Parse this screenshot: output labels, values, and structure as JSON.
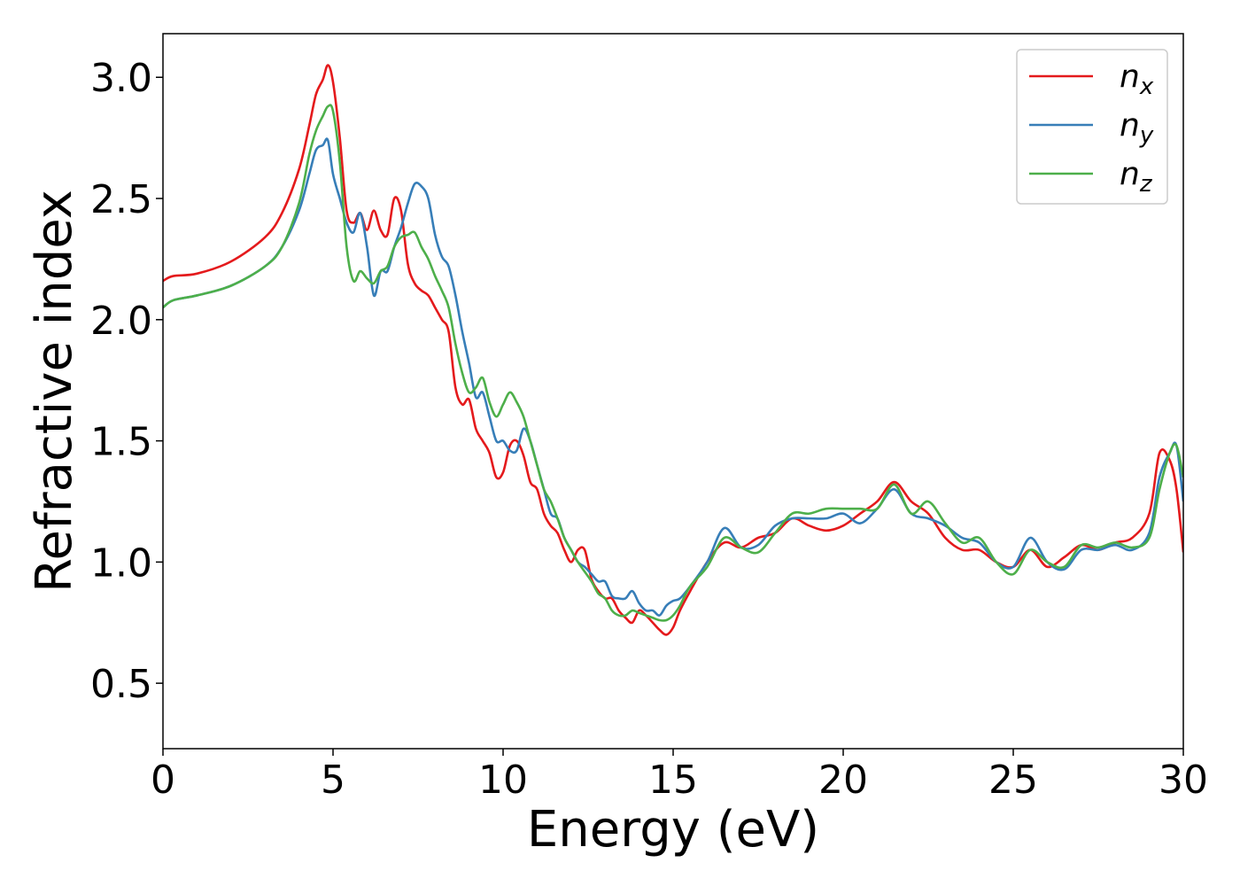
{
  "chart_data": {
    "type": "line",
    "title": "",
    "xlabel": "Energy (eV)",
    "ylabel": "Refractive index",
    "xlim": [
      0,
      30
    ],
    "ylim": [
      0.23,
      3.18
    ],
    "xticks": [
      0,
      5,
      10,
      15,
      20,
      25,
      30
    ],
    "xtick_labels": [
      "0",
      "5",
      "10",
      "15",
      "20",
      "25",
      "30"
    ],
    "yticks": [
      0.5,
      1.0,
      1.5,
      2.0,
      2.5,
      3.0
    ],
    "ytick_labels": [
      "0.5",
      "1.0",
      "1.5",
      "2.0",
      "2.5",
      "3.0"
    ],
    "grid": false,
    "legend_position": "top-right",
    "series": [
      {
        "name": "n",
        "subscript": "x",
        "color": "#e41a1c",
        "x": [
          0,
          0.3,
          1,
          2,
          3,
          3.5,
          4,
          4.3,
          4.5,
          4.7,
          4.85,
          5.0,
          5.2,
          5.4,
          5.6,
          5.8,
          6.0,
          6.2,
          6.4,
          6.6,
          6.8,
          7.0,
          7.2,
          7.4,
          7.6,
          7.8,
          8.0,
          8.2,
          8.4,
          8.6,
          8.8,
          9.0,
          9.2,
          9.4,
          9.6,
          9.8,
          10.0,
          10.2,
          10.4,
          10.6,
          10.8,
          11.0,
          11.2,
          11.4,
          11.6,
          11.8,
          12.0,
          12.2,
          12.4,
          12.6,
          12.8,
          13.0,
          13.2,
          13.4,
          13.6,
          13.8,
          14.0,
          14.2,
          14.4,
          14.6,
          14.8,
          15.0,
          15.2,
          15.5,
          16.0,
          16.5,
          17.0,
          17.5,
          18.0,
          18.5,
          19.0,
          19.5,
          20.0,
          20.5,
          21.0,
          21.5,
          22.0,
          22.5,
          23.0,
          23.5,
          24.0,
          24.5,
          25.0,
          25.5,
          26.0,
          26.5,
          27.0,
          27.5,
          28.0,
          28.5,
          29.0,
          29.3,
          29.6,
          29.8,
          30.0
        ],
        "y": [
          2.16,
          2.18,
          2.19,
          2.24,
          2.34,
          2.44,
          2.62,
          2.8,
          2.93,
          2.99,
          3.05,
          2.98,
          2.75,
          2.45,
          2.4,
          2.44,
          2.37,
          2.45,
          2.37,
          2.35,
          2.5,
          2.45,
          2.23,
          2.15,
          2.12,
          2.1,
          2.05,
          2.0,
          1.95,
          1.72,
          1.65,
          1.67,
          1.55,
          1.5,
          1.45,
          1.35,
          1.37,
          1.48,
          1.5,
          1.44,
          1.33,
          1.3,
          1.2,
          1.15,
          1.12,
          1.05,
          1.0,
          1.05,
          1.05,
          0.93,
          0.88,
          0.85,
          0.85,
          0.8,
          0.77,
          0.75,
          0.8,
          0.78,
          0.75,
          0.72,
          0.7,
          0.73,
          0.8,
          0.88,
          1.0,
          1.08,
          1.06,
          1.1,
          1.12,
          1.18,
          1.15,
          1.13,
          1.15,
          1.2,
          1.25,
          1.33,
          1.25,
          1.2,
          1.1,
          1.05,
          1.05,
          1.0,
          0.98,
          1.05,
          0.98,
          1.02,
          1.07,
          1.05,
          1.08,
          1.1,
          1.2,
          1.45,
          1.42,
          1.3,
          1.04
        ]
      },
      {
        "name": "n",
        "subscript": "y",
        "color": "#377eb8",
        "x": [
          0,
          0.3,
          1,
          2,
          3,
          3.5,
          4,
          4.3,
          4.5,
          4.7,
          4.85,
          5.0,
          5.2,
          5.4,
          5.6,
          5.8,
          6.0,
          6.2,
          6.4,
          6.6,
          6.8,
          7.0,
          7.2,
          7.4,
          7.6,
          7.8,
          8.0,
          8.2,
          8.4,
          8.6,
          8.8,
          9.0,
          9.2,
          9.4,
          9.6,
          9.8,
          10.0,
          10.2,
          10.4,
          10.6,
          10.8,
          11.0,
          11.2,
          11.4,
          11.6,
          11.8,
          12.0,
          12.2,
          12.4,
          12.6,
          12.8,
          13.0,
          13.2,
          13.4,
          13.6,
          13.8,
          14.0,
          14.2,
          14.4,
          14.6,
          14.8,
          15.0,
          15.2,
          15.5,
          16.0,
          16.5,
          17.0,
          17.5,
          18.0,
          18.5,
          19.0,
          19.5,
          20.0,
          20.5,
          21.0,
          21.5,
          22.0,
          22.5,
          23.0,
          23.5,
          24.0,
          24.5,
          25.0,
          25.5,
          26.0,
          26.5,
          27.0,
          27.5,
          28.0,
          28.5,
          29.0,
          29.3,
          29.6,
          29.8,
          30.0
        ],
        "y": [
          2.05,
          2.08,
          2.1,
          2.14,
          2.22,
          2.3,
          2.45,
          2.6,
          2.7,
          2.72,
          2.74,
          2.6,
          2.5,
          2.4,
          2.36,
          2.44,
          2.3,
          2.1,
          2.2,
          2.2,
          2.3,
          2.38,
          2.48,
          2.56,
          2.55,
          2.5,
          2.35,
          2.26,
          2.22,
          2.1,
          1.95,
          1.82,
          1.68,
          1.7,
          1.6,
          1.5,
          1.5,
          1.46,
          1.46,
          1.55,
          1.5,
          1.4,
          1.3,
          1.2,
          1.18,
          1.1,
          1.05,
          1.0,
          0.98,
          0.95,
          0.92,
          0.92,
          0.86,
          0.85,
          0.85,
          0.88,
          0.83,
          0.8,
          0.8,
          0.78,
          0.82,
          0.84,
          0.85,
          0.9,
          1.0,
          1.14,
          1.06,
          1.07,
          1.15,
          1.18,
          1.18,
          1.18,
          1.2,
          1.16,
          1.22,
          1.3,
          1.2,
          1.18,
          1.15,
          1.1,
          1.08,
          1.0,
          0.98,
          1.1,
          1.0,
          0.97,
          1.05,
          1.05,
          1.07,
          1.05,
          1.12,
          1.35,
          1.45,
          1.48,
          1.25
        ]
      },
      {
        "name": "n",
        "subscript": "z",
        "color": "#4daf4a",
        "x": [
          0,
          0.3,
          1,
          2,
          3,
          3.5,
          4,
          4.3,
          4.5,
          4.7,
          4.85,
          5.0,
          5.2,
          5.4,
          5.6,
          5.8,
          6.0,
          6.2,
          6.4,
          6.6,
          6.8,
          7.0,
          7.2,
          7.4,
          7.6,
          7.8,
          8.0,
          8.2,
          8.4,
          8.6,
          8.8,
          9.0,
          9.2,
          9.4,
          9.6,
          9.8,
          10.0,
          10.2,
          10.4,
          10.6,
          10.8,
          11.0,
          11.2,
          11.4,
          11.6,
          11.8,
          12.0,
          12.2,
          12.4,
          12.6,
          12.8,
          13.0,
          13.2,
          13.4,
          13.6,
          13.8,
          14.0,
          14.2,
          14.4,
          14.6,
          14.8,
          15.0,
          15.2,
          15.5,
          16.0,
          16.5,
          17.0,
          17.5,
          18.0,
          18.5,
          19.0,
          19.5,
          20.0,
          20.5,
          21.0,
          21.5,
          22.0,
          22.5,
          23.0,
          23.5,
          24.0,
          24.5,
          25.0,
          25.5,
          26.0,
          26.5,
          27.0,
          27.5,
          28.0,
          28.5,
          29.0,
          29.3,
          29.6,
          29.8,
          30.0
        ],
        "y": [
          2.05,
          2.08,
          2.1,
          2.14,
          2.22,
          2.3,
          2.48,
          2.68,
          2.78,
          2.84,
          2.88,
          2.86,
          2.65,
          2.3,
          2.16,
          2.2,
          2.17,
          2.15,
          2.2,
          2.22,
          2.3,
          2.34,
          2.35,
          2.36,
          2.3,
          2.25,
          2.18,
          2.12,
          2.05,
          1.9,
          1.78,
          1.7,
          1.72,
          1.76,
          1.66,
          1.6,
          1.65,
          1.7,
          1.66,
          1.6,
          1.5,
          1.4,
          1.3,
          1.25,
          1.18,
          1.1,
          1.05,
          1.0,
          0.96,
          0.92,
          0.87,
          0.85,
          0.8,
          0.78,
          0.78,
          0.8,
          0.79,
          0.78,
          0.77,
          0.76,
          0.76,
          0.78,
          0.82,
          0.9,
          0.98,
          1.1,
          1.06,
          1.04,
          1.12,
          1.2,
          1.2,
          1.22,
          1.22,
          1.22,
          1.22,
          1.32,
          1.2,
          1.25,
          1.16,
          1.08,
          1.1,
          1.0,
          0.95,
          1.05,
          1.0,
          0.98,
          1.07,
          1.06,
          1.08,
          1.06,
          1.1,
          1.3,
          1.45,
          1.48,
          1.35
        ]
      }
    ]
  }
}
